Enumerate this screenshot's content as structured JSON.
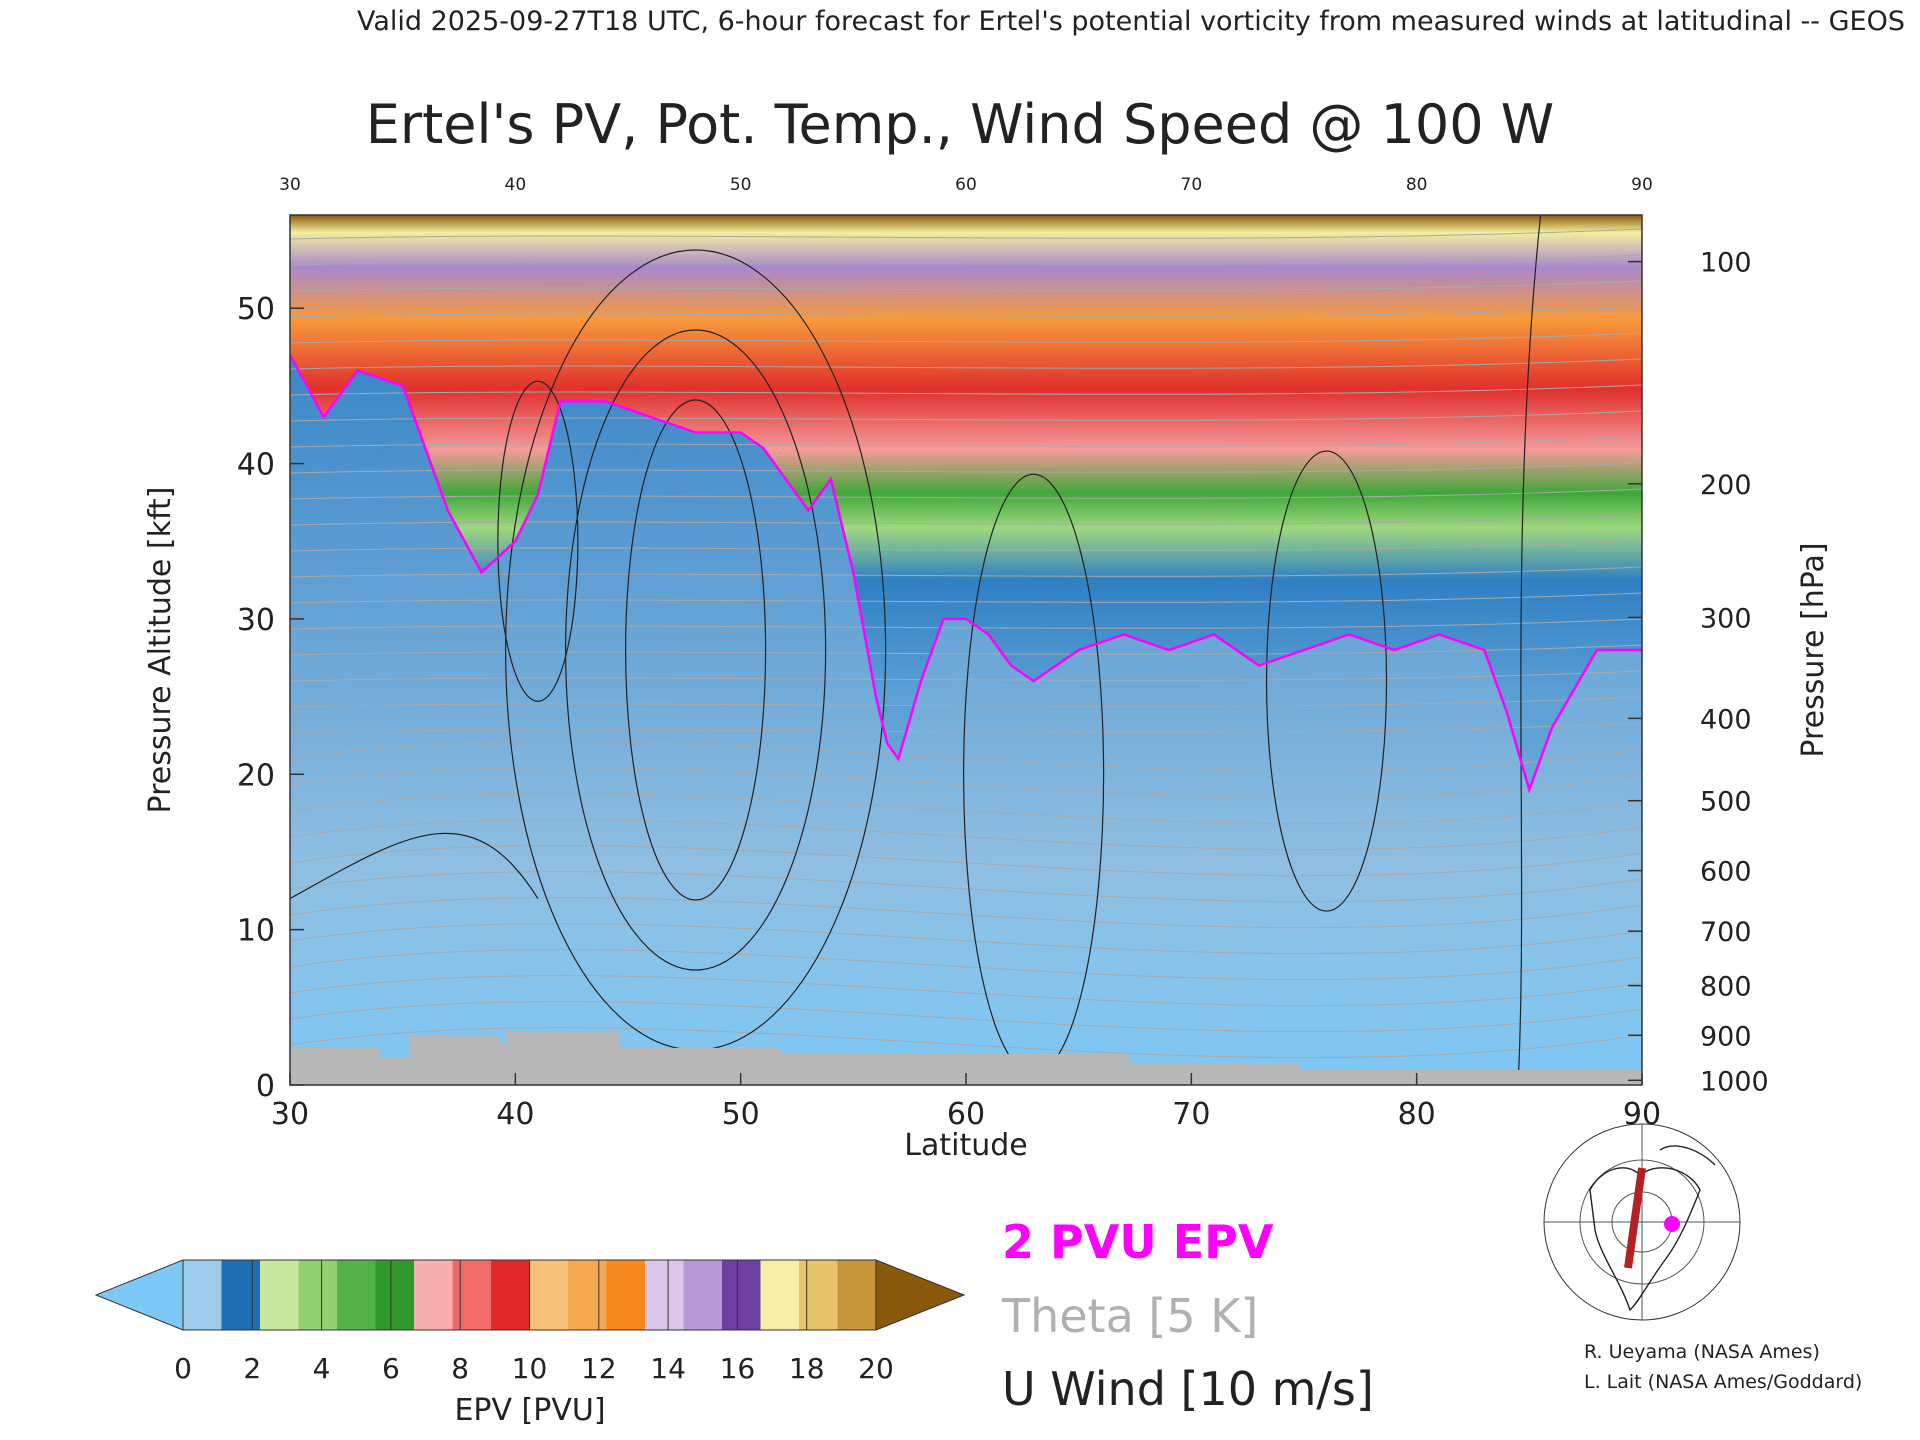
{
  "header": {
    "valid_line": "Valid 2025-09-27T18 UTC, 6-hour forecast for Ertel's potential vorticity from measured winds at latitudinal -- GEOS"
  },
  "chart_data": {
    "type": "heatmap",
    "title": "Ertel's PV, Pot. Temp., Wind Speed @ 100 W",
    "xlabel": "Latitude",
    "ylabel": "Pressure Altitude [kft]",
    "y2label": "Pressure [hPa]",
    "xlim": [
      30,
      90
    ],
    "ylim": [
      0,
      56
    ],
    "x_ticks": [
      "30",
      "40",
      "50",
      "60",
      "70",
      "80",
      "90"
    ],
    "top_x_ticks": [
      "30",
      "40",
      "50",
      "60",
      "70",
      "80",
      "90"
    ],
    "y_ticks": [
      "0",
      "10",
      "20",
      "30",
      "40",
      "50"
    ],
    "pressure_ticks": [
      {
        "label": "100",
        "kft": 53.0
      },
      {
        "label": "200",
        "kft": 38.7
      },
      {
        "label": "300",
        "kft": 30.1
      },
      {
        "label": "400",
        "kft": 23.6
      },
      {
        "label": "500",
        "kft": 18.3
      },
      {
        "label": "600",
        "kft": 13.8
      },
      {
        "label": "700",
        "kft": 9.9
      },
      {
        "label": "800",
        "kft": 6.4
      },
      {
        "label": "900",
        "kft": 3.2
      },
      {
        "label": "1000",
        "kft": 0.3
      }
    ],
    "colorbar": {
      "label": "EPV [PVU]",
      "ticks": [
        "0",
        "2",
        "4",
        "6",
        "8",
        "10",
        "12",
        "14",
        "16",
        "18",
        "20"
      ],
      "under_color": "#7ec8f5",
      "over_color": "#8a5a0c",
      "colors": [
        "#9dcbea",
        "#1e6fb5",
        "#c9e8a0",
        "#93d070",
        "#54b048",
        "#2f9a2a",
        "#f7b0b0",
        "#f06a6a",
        "#e02a28",
        "#f8c27a",
        "#f8a850",
        "#f88820",
        "#d9c6ea",
        "#b69ad6",
        "#6e3fa0",
        "#f6f0a6",
        "#e8c46c",
        "#c8963a"
      ]
    },
    "tropopause_2pvu": [
      [
        30,
        47
      ],
      [
        31.5,
        43
      ],
      [
        33,
        46
      ],
      [
        35,
        45
      ],
      [
        36.5,
        39
      ],
      [
        37,
        37
      ],
      [
        38.5,
        33
      ],
      [
        40,
        35
      ],
      [
        41,
        38
      ],
      [
        42,
        44
      ],
      [
        44,
        44
      ],
      [
        46,
        43
      ],
      [
        48,
        42
      ],
      [
        50,
        42
      ],
      [
        51,
        41
      ],
      [
        52,
        39
      ],
      [
        53,
        37
      ],
      [
        54,
        39
      ],
      [
        55,
        33
      ],
      [
        56,
        25
      ],
      [
        56.5,
        22
      ],
      [
        57,
        21
      ],
      [
        58,
        26
      ],
      [
        59,
        30
      ],
      [
        60,
        30
      ],
      [
        61,
        29
      ],
      [
        62,
        27
      ],
      [
        63,
        26
      ],
      [
        65,
        28
      ],
      [
        67,
        29
      ],
      [
        69,
        28
      ],
      [
        71,
        29
      ],
      [
        73,
        27
      ],
      [
        75,
        28
      ],
      [
        77,
        29
      ],
      [
        79,
        28
      ],
      [
        81,
        29
      ],
      [
        83,
        28
      ],
      [
        84,
        24
      ],
      [
        85,
        19
      ],
      [
        86,
        23
      ],
      [
        88,
        28
      ],
      [
        90,
        28
      ]
    ],
    "legend": [
      {
        "label": "2 PVU EPV",
        "color": "#ff00ff"
      },
      {
        "label": "Theta [5 K]",
        "color": "#b0b0b0"
      },
      {
        "label": "U Wind [10 m/s]",
        "color": "#222222"
      }
    ],
    "credits": [
      "R. Ueyama (NASA Ames)",
      "L. Lait (NASA Ames/Goddard)"
    ]
  }
}
